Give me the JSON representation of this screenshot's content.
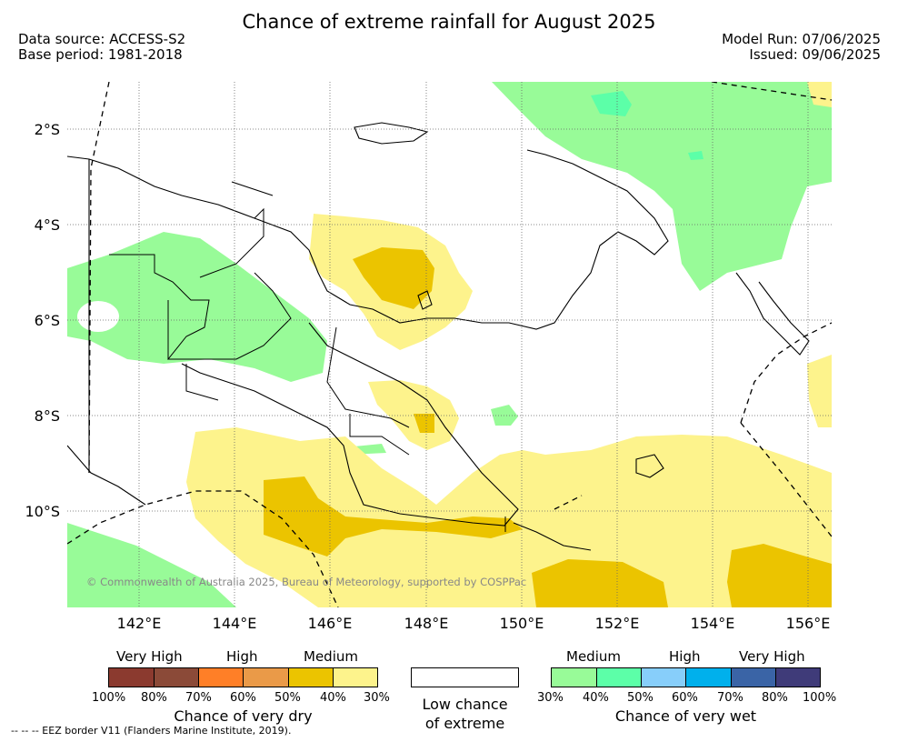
{
  "title": "Chance of extreme rainfall for August 2025",
  "header": {
    "data_source": "Data source: ACCESS-S2",
    "base_period": "Base period: 1981-2018",
    "model_run": "Model Run: 07/06/2025",
    "issued": "Issued: 09/06/2025"
  },
  "map": {
    "lat_labels": [
      "2°S",
      "4°S",
      "6°S",
      "8°S",
      "10°S"
    ],
    "lon_labels": [
      "142°E",
      "144°E",
      "146°E",
      "148°E",
      "150°E",
      "152°E",
      "154°E",
      "156°E"
    ],
    "copyright": "© Commonwealth of Australia 2025, Bureau of Meteorology, supported by COSPPac",
    "eez_note": "--  --  -- EEZ border V11 (Flanders Marine Institute, 2019)."
  },
  "legend": {
    "dry": {
      "tiers": [
        "Very High",
        "High",
        "Medium"
      ],
      "colors": [
        "#8b3a2f",
        "#8b4a38",
        "#ff7f27",
        "#ea9a48",
        "#ebc400",
        "#fdf38c"
      ],
      "ticks": [
        "100%",
        "80%",
        "70%",
        "60%",
        "50%",
        "40%",
        "30%"
      ],
      "label": "Chance of very dry"
    },
    "low": {
      "line1": "Low chance",
      "line2": "of extreme"
    },
    "wet": {
      "tiers": [
        "Medium",
        "High",
        "Very High"
      ],
      "colors": [
        "#98fb98",
        "#5cffa8",
        "#87cefa",
        "#00b0ec",
        "#3a64a6",
        "#3f3b79"
      ],
      "ticks": [
        "30%",
        "40%",
        "50%",
        "60%",
        "70%",
        "80%",
        "100%"
      ],
      "label": "Chance of very wet"
    }
  }
}
